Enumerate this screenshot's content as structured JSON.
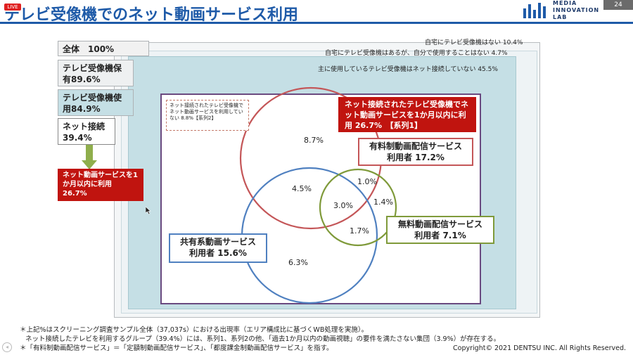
{
  "header": {
    "live_label": "LIVE",
    "title": "テレビ受像機でのネット動画サービス利用",
    "logo_text": "MEDIA\nINNOVATION\nLAB",
    "page_number": "24"
  },
  "notes": {
    "no_tv": "自宅にテレビ受像機はない 10.4%",
    "not_self": "自宅にテレビ受像機はあるが、自分で使用することはない 4.7%",
    "not_connected": "主に使用しているテレビ受像機はネット接続していない 45.5%"
  },
  "left": {
    "total": "全体　100%",
    "own": "テレビ受像機保有89.6%",
    "use": "テレビ受像機使用84.9%",
    "net": "ネット接続　39.4%",
    "red": "ネット動画サービスを1か月以内に利用　26.7%"
  },
  "dashed_note": "ネット接続されたテレビ受像機でネット動画サービスを利用していない 8.8%【系列2】",
  "series1_label": "ネット接続されたテレビ受像機でネット動画サービスを1か月以内に利用 26.7%　【系列1】",
  "paid": {
    "line1": "有料制動画配信サービス",
    "line2": "利用者 17.2%"
  },
  "free": {
    "line1": "無料動画配信サービス",
    "line2": "利用者 7.1%"
  },
  "share": {
    "line1": "共有系動画サービス",
    "line2": "利用者 15.6%"
  },
  "venn_values": {
    "paid_only": "8.7%",
    "paid_share": "4.5%",
    "paid_free": "1.0%",
    "all_three": "3.0%",
    "free_only": "1.4%",
    "free_share": "1.7%",
    "share_only": "6.3%"
  },
  "colors": {
    "title_blue": "#1e5aa8",
    "paid_red": "#c45658",
    "free_green": "#7f9a3a",
    "share_blue": "#4f80c0",
    "alert_red": "#c0140f"
  },
  "footer": {
    "line1": "＊上記%はスクリーニング調査サンプル全体（37,037s）における出現率（エリア構成比に基づくWB処理を実施）。",
    "line2": "ネット接続したテレビを利用するグループ（39.4%）には、系列1、系列2の他、「過去1か月以内の動画視聴」の要件を満たさない集団（3.9%）が存在する。",
    "line3": "＊「有料制動画配信サービス」＝「定額制動画配信サービス」、「都度課金制動画配信サービス」を指す。",
    "copyright": "Copyright© 2021 DENTSU INC. All Rights Reserved."
  }
}
